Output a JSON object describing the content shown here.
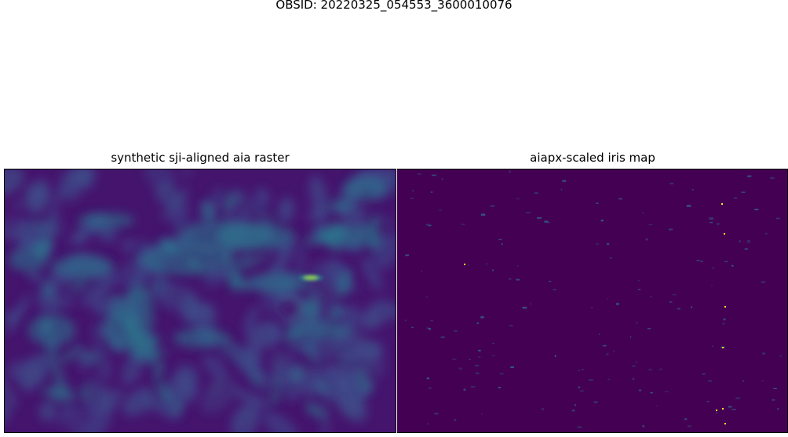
{
  "figure": {
    "suptitle": "OBSID: 20220325_054553_3600010076"
  },
  "panels": [
    {
      "title": "synthetic sji-aligned aia raster",
      "background_color": "#45156e",
      "mid_color": "#3f4b8a",
      "bright_color": "#29798e",
      "peak_color": "#93d63f"
    },
    {
      "title": "aiapx-scaled iris map",
      "background_color": "#440154",
      "speck_color": "#2e6f8e",
      "peak_color": "#fde725"
    }
  ]
}
